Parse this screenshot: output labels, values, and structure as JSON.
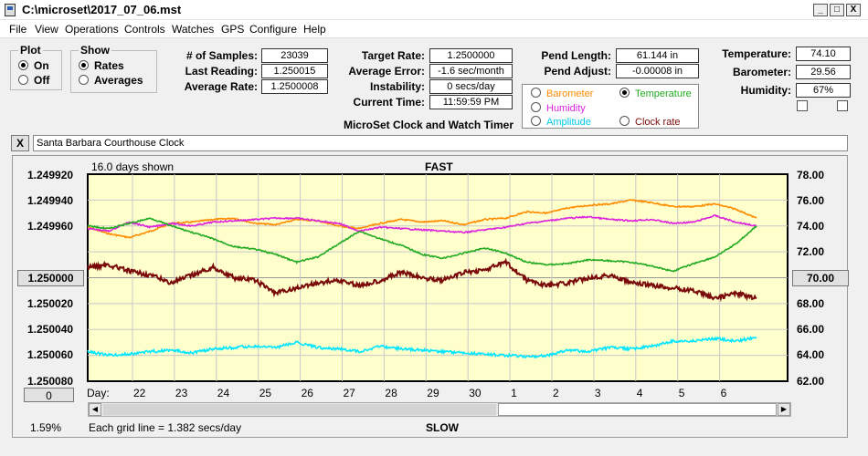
{
  "window": {
    "title": "C:\\microset\\2017_07_06.mst",
    "min": "_",
    "max": "□",
    "close": "X"
  },
  "menu": [
    "File",
    "View",
    "Operations",
    "Controls",
    "Watches",
    "GPS",
    "Configure",
    "Help"
  ],
  "plot": {
    "title": "Plot",
    "on": "On",
    "off": "Off",
    "selected": "On"
  },
  "show": {
    "title": "Show",
    "rates": "Rates",
    "averages": "Averages",
    "selected": "Rates"
  },
  "stats": {
    "samples_label": "# of Samples:",
    "samples": "23039",
    "last_label": "Last Reading:",
    "last": "1.250015",
    "avg_label": "Average Rate:",
    "avg": "1.2500008"
  },
  "rates": {
    "target_label": "Target Rate:",
    "target": "1.2500000",
    "err_label": "Average Error:",
    "err": "-1.6 sec/month",
    "inst_label": "Instability:",
    "inst": "0 secs/day",
    "time_label": "Current Time:",
    "time": "11:59:59 PM"
  },
  "pend": {
    "length_label": "Pend Length:",
    "length": "61.144 in",
    "adjust_label": "Pend Adjust:",
    "adjust": "-0.00008 in"
  },
  "env": {
    "temp_label": "Temperature:",
    "temp": "74.10",
    "baro_label": "Barometer:",
    "baro": "29.56",
    "hum_label": "Humidity:",
    "hum": "67%"
  },
  "legend": {
    "barometer": "Barometer",
    "temperature": "Temperature",
    "humidity": "Humidity",
    "amplitude": "Amplitude",
    "clockrate": "Clock rate",
    "selected": "Temperature",
    "colors": {
      "barometer": "#ff8c00",
      "temperature": "#22aa22",
      "humidity": "#dd22dd",
      "amplitude": "#00e5ff",
      "clockrate": "#7a0a0a"
    }
  },
  "app_subtitle": "MicroSet Clock and Watch Timer",
  "clock_name": "Santa Barbara Courthouse Clock",
  "clear_button": "X",
  "chart_data": {
    "type": "line",
    "days_shown": "16.0 days shown",
    "top_label": "FAST",
    "bottom_label": "SLOW",
    "grid_note": "Each grid line = 1.382 secs/day",
    "percent": "1.59%",
    "day_axis_label": "Day:",
    "left_ticks": [
      "1.249920",
      "1.249940",
      "1.249960",
      "1.250000",
      "1.250020",
      "1.250040",
      "1.250060",
      "1.250080"
    ],
    "left_button": "1.250000",
    "left_bottom_button": "0",
    "right_ticks": [
      "78.00",
      "76.00",
      "74.00",
      "70.00",
      "68.00",
      "66.00",
      "64.00",
      "62.00"
    ],
    "right_button": "70.00",
    "right_range": [
      62,
      78
    ],
    "days": [
      "22",
      "23",
      "24",
      "25",
      "26",
      "27",
      "28",
      "29",
      "30",
      "1",
      "2",
      "3",
      "4",
      "5",
      "6"
    ],
    "x_range": [
      0,
      16
    ],
    "series": [
      {
        "name": "Barometer",
        "color": "#ff8c00",
        "x": [
          0,
          0.5,
          1,
          1.5,
          2,
          2.5,
          3,
          3.5,
          4,
          4.5,
          5,
          5.5,
          6,
          6.5,
          7,
          7.5,
          8,
          8.5,
          9,
          9.5,
          10,
          10.5,
          11,
          11.5,
          12,
          12.5,
          13,
          13.5,
          14,
          14.5,
          15,
          15.5,
          16
        ],
        "y": [
          73.9,
          73.4,
          73.1,
          73.6,
          74.2,
          74.3,
          74.5,
          74.6,
          74.2,
          74.1,
          74.5,
          74.4,
          74.0,
          73.8,
          74.2,
          74.5,
          74.3,
          74.4,
          74.1,
          74.5,
          74.6,
          75.1,
          75.0,
          75.4,
          75.6,
          75.7,
          76.0,
          75.8,
          75.5,
          75.5,
          75.7,
          75.3,
          74.6
        ]
      },
      {
        "name": "Humidity",
        "color": "#dd22dd",
        "x": [
          0,
          0.5,
          1,
          1.5,
          2,
          2.5,
          3,
          3.5,
          4,
          4.5,
          5,
          5.5,
          6,
          6.5,
          7,
          7.5,
          8,
          8.5,
          9,
          9.5,
          10,
          10.5,
          11,
          11.5,
          12,
          12.5,
          13,
          13.5,
          14,
          14.5,
          15,
          15.5,
          16
        ],
        "y": [
          73.8,
          73.6,
          74.3,
          73.9,
          74.2,
          74.0,
          74.3,
          74.4,
          74.5,
          74.6,
          74.6,
          74.4,
          74.2,
          73.6,
          73.9,
          73.8,
          73.7,
          73.6,
          73.5,
          73.7,
          73.9,
          74.2,
          74.4,
          74.6,
          74.7,
          74.5,
          74.4,
          74.5,
          74.2,
          74.3,
          74.8,
          74.3,
          74.0
        ]
      },
      {
        "name": "Temperature",
        "color": "#22aa22",
        "x": [
          0,
          0.5,
          1,
          1.5,
          2,
          2.5,
          3,
          3.5,
          4,
          4.5,
          5,
          5.5,
          6,
          6.5,
          7,
          7.5,
          8,
          8.5,
          9,
          9.5,
          10,
          10.5,
          11,
          11.5,
          12,
          12.5,
          13,
          13.5,
          14,
          14.5,
          15,
          15.5,
          16
        ],
        "y": [
          74.0,
          73.8,
          74.2,
          74.6,
          74.0,
          73.5,
          73.0,
          72.4,
          72.2,
          71.8,
          71.2,
          71.6,
          72.6,
          73.6,
          73.0,
          72.5,
          71.8,
          71.5,
          71.9,
          72.3,
          71.9,
          71.2,
          71.0,
          71.1,
          71.4,
          71.3,
          71.2,
          70.9,
          70.5,
          71.1,
          71.6,
          72.6,
          74.0
        ]
      },
      {
        "name": "Clock rate",
        "color": "#7a0a0a",
        "units": "left",
        "x": [
          0,
          0.5,
          1,
          1.5,
          2,
          2.5,
          3,
          3.5,
          4,
          4.5,
          5,
          5.5,
          6,
          6.5,
          7,
          7.5,
          8,
          8.5,
          9,
          9.5,
          10,
          10.5,
          11,
          11.5,
          12,
          12.5,
          13,
          13.5,
          14,
          14.5,
          15,
          15.5,
          16
        ],
        "y": [
          1.249992,
          1.24999,
          1.249995,
          1.249998,
          1.250004,
          1.249998,
          1.249992,
          1.25,
          1.250002,
          1.250012,
          1.250008,
          1.250004,
          1.250002,
          1.250006,
          1.250002,
          1.249996,
          1.25,
          1.250002,
          1.249996,
          1.249994,
          1.249988,
          1.250002,
          1.250006,
          1.250004,
          1.25,
          1.249998,
          1.250004,
          1.250006,
          1.250008,
          1.25001,
          1.250016,
          1.250012,
          1.250016
        ]
      },
      {
        "name": "Amplitude",
        "color": "#00e5ff",
        "x": [
          0,
          0.5,
          1,
          1.5,
          2,
          2.5,
          3,
          3.5,
          4,
          4.5,
          5,
          5.5,
          6,
          6.5,
          7,
          7.5,
          8,
          8.5,
          9,
          9.5,
          10,
          10.5,
          11,
          11.5,
          12,
          12.5,
          13,
          13.5,
          14,
          14.5,
          15,
          15.5,
          16
        ],
        "y": [
          64.3,
          64.0,
          64.1,
          64.3,
          64.4,
          64.2,
          64.5,
          64.6,
          64.7,
          64.6,
          65.0,
          64.6,
          64.5,
          64.3,
          64.7,
          64.5,
          64.4,
          64.3,
          64.2,
          64.1,
          64.0,
          63.9,
          64.0,
          64.4,
          64.3,
          64.6,
          64.5,
          64.7,
          65.1,
          65.1,
          65.3,
          65.1,
          65.4
        ]
      }
    ]
  }
}
